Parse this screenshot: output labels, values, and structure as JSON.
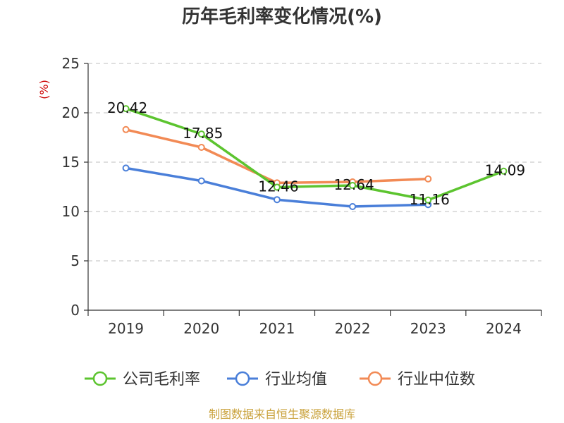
{
  "chart_data": {
    "type": "line",
    "title": "历年毛利率变化情况(%)",
    "ylabel": "(%)",
    "categories": [
      "2019",
      "2020",
      "2021",
      "2022",
      "2023",
      "2024"
    ],
    "ylim": [
      0,
      25
    ],
    "yticks": [
      "0",
      "5",
      "10",
      "15",
      "20",
      "25"
    ],
    "grid": true,
    "legend": "bottom",
    "series": [
      {
        "name": "公司毛利率",
        "color": "#5cc42f",
        "values": [
          20.42,
          17.85,
          12.46,
          12.64,
          11.16,
          14.09
        ],
        "labels": [
          "20.42",
          "17.85",
          "12.46",
          "12.64",
          "11.16",
          "14.09"
        ]
      },
      {
        "name": "行业均值",
        "color": "#4a7fd9",
        "values": [
          14.4,
          13.1,
          11.2,
          10.5,
          10.7,
          null
        ]
      },
      {
        "name": "行业中位数",
        "color": "#f28a55",
        "values": [
          18.3,
          16.5,
          12.9,
          13.0,
          13.3,
          null
        ]
      }
    ],
    "source": "制图数据来自恒生聚源数据库"
  }
}
